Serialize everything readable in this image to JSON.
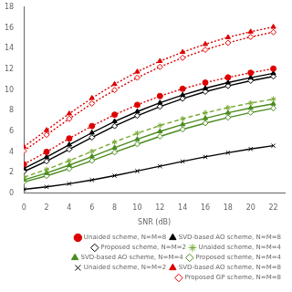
{
  "chart_data": {
    "type": "line",
    "xlabel": "SNR (dB)",
    "x": [
      0,
      2,
      4,
      6,
      8,
      10,
      12,
      14,
      16,
      18,
      20,
      22
    ],
    "series": [
      {
        "name": "Unaided scheme, N=M=8",
        "color": "#dd0000",
        "line_style": "dotted",
        "marker": "circle",
        "values": [
          2.8,
          4.0,
          5.3,
          6.5,
          7.6,
          8.55,
          9.4,
          10.1,
          10.7,
          11.2,
          11.65,
          12.05
        ]
      },
      {
        "name": "SVD-based AO scheme, N=M=8",
        "color": "#000000",
        "line_style": "solid",
        "marker": "triangle",
        "values": [
          2.4,
          3.5,
          4.7,
          5.85,
          6.95,
          7.9,
          8.75,
          9.5,
          10.15,
          10.7,
          11.18,
          11.6
        ]
      },
      {
        "name": "Proposed scheme, N=M=2",
        "color": "#000000",
        "line_style": "solid",
        "marker": "open_diamond",
        "values": [
          2.1,
          3.1,
          4.25,
          5.4,
          6.5,
          7.5,
          8.38,
          9.15,
          9.82,
          10.38,
          10.88,
          11.3
        ]
      },
      {
        "name": "Unaided scheme, N=M=4",
        "color": "#77aa33",
        "line_style": "dashed",
        "marker": "star",
        "values": [
          1.55,
          2.3,
          3.15,
          4.05,
          4.95,
          5.8,
          6.55,
          7.2,
          7.78,
          8.28,
          8.72,
          9.1
        ]
      },
      {
        "name": "SVD-based AO scheme, N=M=4",
        "color": "#4a8c1e",
        "line_style": "solid",
        "marker": "triangle",
        "values": [
          1.3,
          1.95,
          2.72,
          3.55,
          4.4,
          5.22,
          5.98,
          6.65,
          7.25,
          7.78,
          8.25,
          8.65
        ]
      },
      {
        "name": "Proposed scheme, N=M=4",
        "color": "#4a8c1e",
        "line_style": "solid",
        "marker": "open_diamond",
        "values": [
          1.1,
          1.68,
          2.38,
          3.15,
          3.96,
          4.75,
          5.5,
          6.18,
          6.78,
          7.32,
          7.8,
          8.22
        ]
      },
      {
        "name": "Unaided scheme, N=M=2",
        "color": "#000000",
        "line_style": "solid",
        "marker": "x",
        "values": [
          0.38,
          0.62,
          0.92,
          1.28,
          1.7,
          2.15,
          2.62,
          3.08,
          3.52,
          3.92,
          4.28,
          4.6
        ]
      },
      {
        "name": "SVD-based AO scheme, N=M=8",
        "color": "#dd0000",
        "line_style": "dotted",
        "marker": "triangle",
        "values": [
          4.5,
          6.1,
          7.7,
          9.2,
          10.55,
          11.75,
          12.78,
          13.65,
          14.42,
          15.08,
          15.62,
          16.08
        ]
      },
      {
        "name": "Proposed GP scheme, N=M=8",
        "color": "#dd0000",
        "line_style": "dotted",
        "marker": "open_diamond",
        "values": [
          4.1,
          5.65,
          7.2,
          8.68,
          9.98,
          11.18,
          12.22,
          13.1,
          13.88,
          14.55,
          15.12,
          15.58
        ]
      }
    ],
    "xlim": [
      0,
      23
    ],
    "xticks": [
      0,
      2,
      4,
      6,
      8,
      10,
      12,
      14,
      16,
      18,
      20,
      22
    ],
    "ylim": [
      0,
      18
    ],
    "yticks": [
      0,
      2,
      4,
      6,
      8,
      10,
      12,
      14,
      16,
      18
    ],
    "legend": "lower right",
    "grid": false
  }
}
